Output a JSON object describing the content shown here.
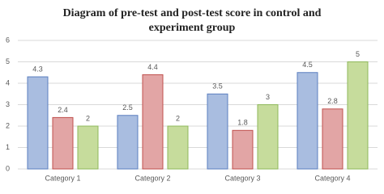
{
  "chart_data": {
    "type": "bar",
    "title": "Diagram of pre-test and post-test score in control and experiment group",
    "categories": [
      "Category 1",
      "Category 2",
      "Category 3",
      "Category 4"
    ],
    "series": [
      {
        "color": "#a9bde0",
        "edge": "#5b7fbf",
        "values": [
          4.3,
          2.5,
          3.5,
          4.5
        ]
      },
      {
        "color": "#e2a5a5",
        "edge": "#c0504d",
        "values": [
          2.4,
          4.4,
          1.8,
          2.8
        ]
      },
      {
        "color": "#c6dc9c",
        "edge": "#8fb85a",
        "values": [
          2,
          2,
          3,
          5
        ]
      }
    ],
    "ylim": [
      0,
      6
    ],
    "yticks": [
      0,
      1,
      2,
      3,
      4,
      5,
      6
    ],
    "grid": true
  }
}
